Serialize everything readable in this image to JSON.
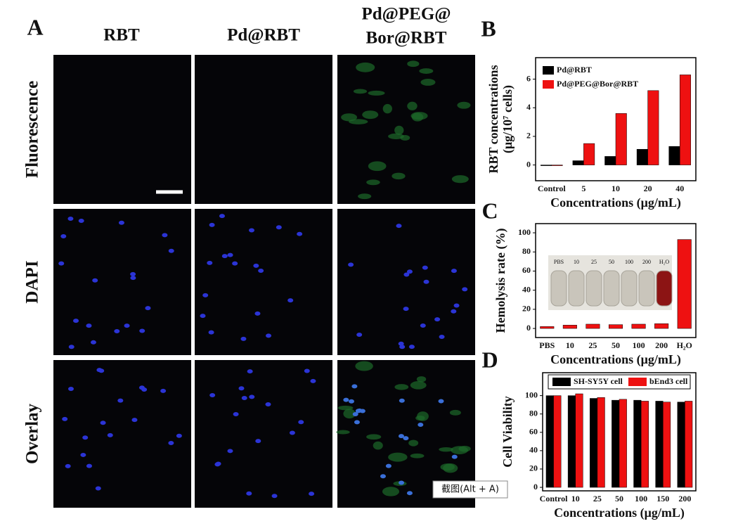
{
  "panels": {
    "A": {
      "letter": "A",
      "columns": [
        [
          "RBT"
        ],
        [
          "Pd@RBT"
        ],
        [
          "Pd@PEG@",
          "Bor@RBT"
        ]
      ],
      "rows": [
        "Fluorescence",
        "DAPI",
        "Overlay"
      ]
    },
    "B": "B",
    "C": "C",
    "D": "D"
  },
  "tooltip": "截图(Alt + A)",
  "chart_data": [
    {
      "type": "bar",
      "ylabel": [
        "RBT concentrations",
        "(μg/10⁷ cells)"
      ],
      "xlabel": "Concentrations (μg/mL)",
      "categories": [
        "Control",
        "5",
        "10",
        "20",
        "40"
      ],
      "series": [
        {
          "name": "Pd@RBT",
          "color": "#000000",
          "values": [
            0,
            0.3,
            0.6,
            1.1,
            1.3
          ]
        },
        {
          "name": "Pd@PEG@Bor@RBT",
          "color": "#ee1111",
          "values": [
            0,
            1.5,
            3.6,
            5.2,
            6.3
          ]
        }
      ],
      "ylim": [
        -1.1,
        7.5
      ],
      "yticks": [
        0,
        2,
        4,
        6
      ],
      "legend": "upper left"
    },
    {
      "type": "bar",
      "ylabel": "Hemolysis rate (%)",
      "xlabel": "Concentrations (μg/mL)",
      "categories": [
        "PBS",
        "10",
        "25",
        "50",
        "100",
        "200",
        "H₂O"
      ],
      "values": [
        2,
        3.5,
        4.5,
        4,
        4.5,
        5,
        93
      ],
      "color": "#ee1111",
      "inset_labels": [
        "PBS",
        "10",
        "25",
        "50",
        "100",
        "200",
        "H₂O"
      ],
      "ylim": [
        -9.5,
        109.6
      ],
      "yticks": [
        0,
        20,
        40,
        60,
        80,
        100
      ]
    },
    {
      "type": "bar",
      "ylabel": "Cell Viability",
      "xlabel": "Concentrations (μg/mL)",
      "categories": [
        "Control",
        "10",
        "25",
        "50",
        "100",
        "150",
        "200"
      ],
      "series": [
        {
          "name": "SH-SY5Y cell",
          "color": "#000000",
          "values": [
            100,
            100,
            97,
            95,
            95,
            94,
            93
          ]
        },
        {
          "name": "bEnd3 cell",
          "color": "#ee1111",
          "values": [
            100,
            102,
            98,
            96,
            94,
            93,
            94
          ]
        }
      ],
      "ylim": [
        -3.8,
        125
      ],
      "yticks": [
        0,
        20,
        40,
        60,
        80,
        100
      ],
      "legend": "top"
    }
  ]
}
